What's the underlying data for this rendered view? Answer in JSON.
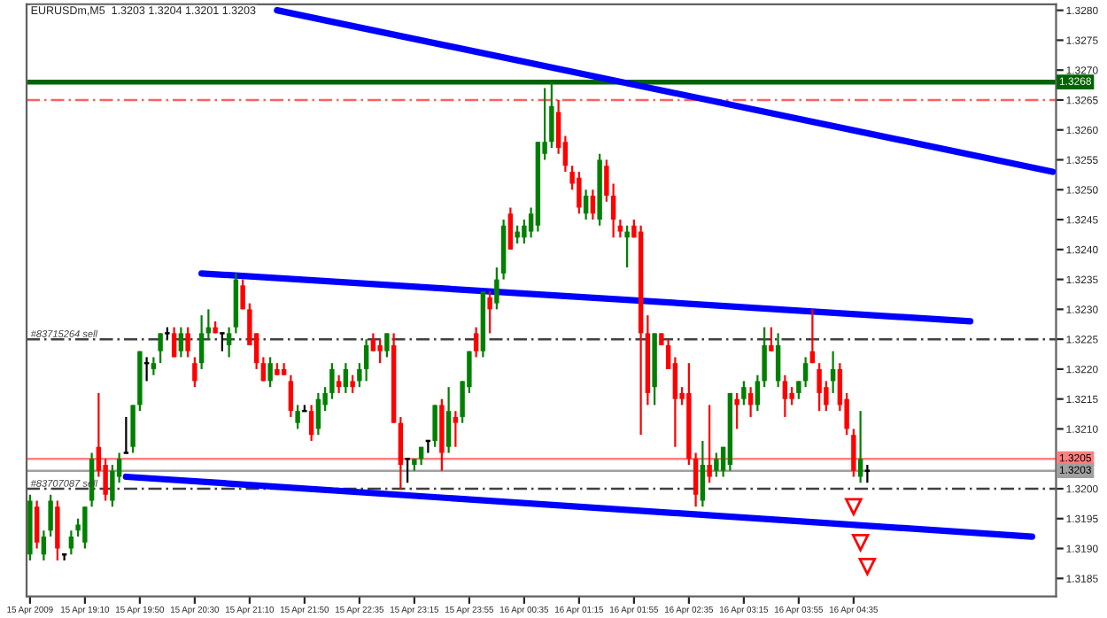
{
  "chart_data": {
    "type": "candlestick",
    "title": "EURUSDm,M5  1.3203 1.3204 1.3201 1.3203",
    "categories": [
      "15 Apr 2009",
      null,
      null,
      null,
      null,
      null,
      null,
      null,
      "15 Apr 19:10",
      null,
      null,
      null,
      null,
      null,
      null,
      null,
      "15 Apr 19:50",
      null,
      null,
      null,
      null,
      null,
      null,
      null,
      "15 Apr 20:30",
      null,
      null,
      null,
      null,
      null,
      null,
      null,
      "15 Apr 21:10",
      null,
      null,
      null,
      null,
      null,
      null,
      null,
      "15 Apr 21:50",
      null,
      null,
      null,
      null,
      null,
      null,
      null,
      "15 Apr 22:35",
      null,
      null,
      null,
      null,
      null,
      null,
      null,
      "15 Apr 23:15",
      null,
      null,
      null,
      null,
      null,
      null,
      null,
      "15 Apr 23:55",
      null,
      null,
      null,
      null,
      null,
      null,
      null,
      "16 Apr 00:35",
      null,
      null,
      null,
      null,
      null,
      null,
      null,
      "16 Apr 01:15",
      null,
      null,
      null,
      null,
      null,
      null,
      null,
      "16 Apr 01:55",
      null,
      null,
      null,
      null,
      null,
      null,
      null,
      "16 Apr 02:35",
      null,
      null,
      null,
      null,
      null,
      null,
      null,
      "16 Apr 03:15",
      null,
      null,
      null,
      null,
      null,
      null,
      null,
      "16 Apr 03:55",
      null,
      null,
      null,
      null,
      null,
      null,
      null,
      "16 Apr 04:35",
      null,
      null,
      null,
      null,
      null,
      null,
      null,
      null,
      null,
      null,
      null,
      null,
      null,
      null,
      null,
      null,
      null,
      null,
      null,
      null,
      null,
      null,
      null,
      null,
      null,
      null,
      null,
      null,
      null
    ],
    "ohlc": [
      [
        1.3189,
        1.3199,
        1.3188,
        1.3198
      ],
      [
        1.3197,
        1.3198,
        1.319,
        1.3191
      ],
      [
        1.3189,
        1.3193,
        1.3188,
        1.3192
      ],
      [
        1.3193,
        1.3199,
        1.3192,
        1.3198
      ],
      [
        1.3197,
        1.3198,
        1.3188,
        1.319
      ],
      [
        1.3189,
        1.3189,
        1.3188,
        1.3189
      ],
      [
        1.319,
        1.3193,
        1.3189,
        1.3192
      ],
      [
        1.3193,
        1.3195,
        1.3192,
        1.3194
      ],
      [
        1.3191,
        1.3197,
        1.319,
        1.3197
      ],
      [
        1.3198,
        1.3206,
        1.3197,
        1.3205
      ],
      [
        1.3207,
        1.3216,
        1.3202,
        1.3203
      ],
      [
        1.3204,
        1.3205,
        1.3198,
        1.3199
      ],
      [
        1.3198,
        1.3204,
        1.3197,
        1.3203
      ],
      [
        1.3202,
        1.3206,
        1.3201,
        1.3205
      ],
      [
        1.3206,
        1.3212,
        1.3206,
        1.3206
      ],
      [
        1.3207,
        1.3214,
        1.3206,
        1.3214
      ],
      [
        1.3214,
        1.3223,
        1.3213,
        1.3223
      ],
      [
        1.3221,
        1.3222,
        1.3218,
        1.3221
      ],
      [
        1.322,
        1.3222,
        1.3219,
        1.3221
      ],
      [
        1.3223,
        1.3226,
        1.3221,
        1.3226
      ],
      [
        1.3226,
        1.3227,
        1.3225,
        1.3226
      ],
      [
        1.3226,
        1.3227,
        1.3222,
        1.3222
      ],
      [
        1.3223,
        1.3227,
        1.3222,
        1.3226
      ],
      [
        1.3226,
        1.3227,
        1.3222,
        1.3223
      ],
      [
        1.3221,
        1.3222,
        1.3217,
        1.3218
      ],
      [
        1.3221,
        1.3229,
        1.322,
        1.3226
      ],
      [
        1.3226,
        1.323,
        1.3225,
        1.3227
      ],
      [
        1.3227,
        1.3228,
        1.3226,
        1.3226
      ],
      [
        1.3226,
        1.3226,
        1.3223,
        1.3226
      ],
      [
        1.3224,
        1.3227,
        1.3222,
        1.3226
      ],
      [
        1.3227,
        1.3236,
        1.3226,
        1.3235
      ],
      [
        1.3234,
        1.3235,
        1.323,
        1.323
      ],
      [
        1.323,
        1.3231,
        1.3224,
        1.3224
      ],
      [
        1.3226,
        1.3226,
        1.322,
        1.3221
      ],
      [
        1.3221,
        1.3222,
        1.3218,
        1.3218
      ],
      [
        1.3218,
        1.3222,
        1.3217,
        1.3221
      ],
      [
        1.322,
        1.3221,
        1.3219,
        1.3219
      ],
      [
        1.322,
        1.3221,
        1.3219,
        1.3219
      ],
      [
        1.3218,
        1.3219,
        1.3212,
        1.3213
      ],
      [
        1.3211,
        1.3214,
        1.321,
        1.3213
      ],
      [
        1.3213,
        1.3214,
        1.3213,
        1.3213
      ],
      [
        1.3213,
        1.3214,
        1.3208,
        1.3209
      ],
      [
        1.321,
        1.3216,
        1.3209,
        1.3215
      ],
      [
        1.3214,
        1.3217,
        1.3213,
        1.3216
      ],
      [
        1.3216,
        1.3221,
        1.3215,
        1.322
      ],
      [
        1.3218,
        1.3219,
        1.3216,
        1.3217
      ],
      [
        1.3217,
        1.3221,
        1.3216,
        1.322
      ],
      [
        1.3218,
        1.3219,
        1.3216,
        1.3217
      ],
      [
        1.3218,
        1.3221,
        1.3217,
        1.322
      ],
      [
        1.322,
        1.3225,
        1.3218,
        1.3224
      ],
      [
        1.3225,
        1.3226,
        1.3223,
        1.3223
      ],
      [
        1.3224,
        1.3225,
        1.3221,
        1.3223
      ],
      [
        1.3223,
        1.3226,
        1.3222,
        1.3226
      ],
      [
        1.3224,
        1.3226,
        1.3211,
        1.3211
      ],
      [
        1.3211,
        1.3212,
        1.32,
        1.3204
      ],
      [
        1.3205,
        1.3205,
        1.3201,
        1.3205
      ],
      [
        1.3204,
        1.3205,
        1.3203,
        1.3205
      ],
      [
        1.3205,
        1.3207,
        1.3204,
        1.3207
      ],
      [
        1.3208,
        1.3208,
        1.3206,
        1.3208
      ],
      [
        1.3208,
        1.3214,
        1.3207,
        1.3214
      ],
      [
        1.3214,
        1.3215,
        1.3203,
        1.3206
      ],
      [
        1.3207,
        1.3217,
        1.3206,
        1.3213
      ],
      [
        1.3212,
        1.3213,
        1.3207,
        1.3211
      ],
      [
        1.3212,
        1.3218,
        1.3211,
        1.3218
      ],
      [
        1.3217,
        1.3223,
        1.3216,
        1.3223
      ],
      [
        1.3226,
        1.3227,
        1.3222,
        1.3223
      ],
      [
        1.3223,
        1.3233,
        1.3222,
        1.3233
      ],
      [
        1.3232,
        1.3233,
        1.3226,
        1.323
      ],
      [
        1.3231,
        1.3237,
        1.323,
        1.3235
      ],
      [
        1.3236,
        1.3245,
        1.3235,
        1.3244
      ],
      [
        1.3246,
        1.3247,
        1.324,
        1.324
      ],
      [
        1.3242,
        1.3244,
        1.3241,
        1.3243
      ],
      [
        1.3242,
        1.3245,
        1.3241,
        1.3244
      ],
      [
        1.3243,
        1.3247,
        1.3242,
        1.3246
      ],
      [
        1.3244,
        1.3258,
        1.3243,
        1.3258
      ],
      [
        1.3256,
        1.3267,
        1.3255,
        1.3258
      ],
      [
        1.3258,
        1.3268,
        1.3257,
        1.3264
      ],
      [
        1.3263,
        1.3265,
        1.3256,
        1.3257
      ],
      [
        1.3258,
        1.3259,
        1.3253,
        1.3254
      ],
      [
        1.3253,
        1.3254,
        1.325,
        1.3251
      ],
      [
        1.3252,
        1.3253,
        1.3246,
        1.3247
      ],
      [
        1.3246,
        1.325,
        1.3245,
        1.3249
      ],
      [
        1.3249,
        1.325,
        1.3245,
        1.3246
      ],
      [
        1.3245,
        1.3256,
        1.3244,
        1.3255
      ],
      [
        1.3254,
        1.3255,
        1.3248,
        1.3249
      ],
      [
        1.3249,
        1.3251,
        1.3242,
        1.3245
      ],
      [
        1.3244,
        1.3245,
        1.3242,
        1.3243
      ],
      [
        1.3242,
        1.3244,
        1.3237,
        1.3243
      ],
      [
        1.3244,
        1.3245,
        1.3242,
        1.3242
      ],
      [
        1.3243,
        1.3244,
        1.3209,
        1.3226
      ],
      [
        1.3226,
        1.3229,
        1.3214,
        1.3216
      ],
      [
        1.3217,
        1.3226,
        1.3214,
        1.3226
      ],
      [
        1.3226,
        1.3226,
        1.3224,
        1.3224
      ],
      [
        1.3224,
        1.3225,
        1.322,
        1.322
      ],
      [
        1.3221,
        1.3222,
        1.3207,
        1.3215
      ],
      [
        1.3216,
        1.3217,
        1.3214,
        1.3215
      ],
      [
        1.3216,
        1.3221,
        1.3204,
        1.3205
      ],
      [
        1.3205,
        1.3206,
        1.3197,
        1.3199
      ],
      [
        1.3198,
        1.3208,
        1.3197,
        1.3204
      ],
      [
        1.3204,
        1.3214,
        1.3201,
        1.3202
      ],
      [
        1.3203,
        1.3206,
        1.3202,
        1.3205
      ],
      [
        1.3203,
        1.3207,
        1.3202,
        1.3207
      ],
      [
        1.3204,
        1.3216,
        1.3203,
        1.3216
      ],
      [
        1.3215,
        1.3216,
        1.321,
        1.3214
      ],
      [
        1.3215,
        1.3218,
        1.3214,
        1.3217
      ],
      [
        1.3216,
        1.3217,
        1.3212,
        1.3214
      ],
      [
        1.3214,
        1.3219,
        1.3213,
        1.3218
      ],
      [
        1.3218,
        1.3227,
        1.3217,
        1.3224
      ],
      [
        1.3224,
        1.3227,
        1.3223,
        1.3223
      ],
      [
        1.3218,
        1.3226,
        1.3217,
        1.3224
      ],
      [
        1.3218,
        1.3219,
        1.3212,
        1.3215
      ],
      [
        1.3216,
        1.3217,
        1.3214,
        1.3215
      ],
      [
        1.3216,
        1.3218,
        1.3215,
        1.3218
      ],
      [
        1.3218,
        1.3222,
        1.3217,
        1.3221
      ],
      [
        1.3223,
        1.323,
        1.3221,
        1.3221
      ],
      [
        1.322,
        1.3221,
        1.3213,
        1.3216
      ],
      [
        1.3217,
        1.3218,
        1.3213,
        1.3214
      ],
      [
        1.3218,
        1.3223,
        1.3216,
        1.322
      ],
      [
        1.322,
        1.3221,
        1.3213,
        1.3214
      ],
      [
        1.3215,
        1.3216,
        1.3209,
        1.321
      ],
      [
        1.3209,
        1.321,
        1.3202,
        1.3203
      ],
      [
        1.3202,
        1.3213,
        1.3201,
        1.3205
      ],
      [
        1.3203,
        1.3204,
        1.3201,
        1.3203
      ],
      null,
      null,
      null,
      null,
      null,
      null,
      null,
      null,
      null,
      null,
      null,
      null,
      null,
      null,
      null,
      null,
      null,
      null,
      null,
      null,
      null,
      null,
      null,
      null,
      null,
      null,
      null
    ],
    "colors": [
      "#008000",
      "#ff0000",
      "#008000",
      "#008000",
      "#ff0000",
      "#000000",
      "#008000",
      "#008000",
      "#008000",
      "#008000",
      "#ff0000",
      "#ff0000",
      "#008000",
      "#008000",
      "#000000",
      "#008000",
      "#008000",
      "#000000",
      "#008000",
      "#008000",
      "#000000",
      "#ff0000",
      "#008000",
      "#ff0000",
      "#ff0000",
      "#008000",
      "#008000",
      "#ff0000",
      "#000000",
      "#008000",
      "#008000",
      "#ff0000",
      "#ff0000",
      "#ff0000",
      "#ff0000",
      "#008000",
      "#ff0000",
      "#ff0000",
      "#ff0000",
      "#008000",
      "#000000",
      "#ff0000",
      "#008000",
      "#008000",
      "#008000",
      "#ff0000",
      "#008000",
      "#ff0000",
      "#008000",
      "#008000",
      "#ff0000",
      "#ff0000",
      "#008000",
      "#ff0000",
      "#ff0000",
      "#000000",
      "#008000",
      "#008000",
      "#000000",
      "#008000",
      "#ff0000",
      "#008000",
      "#ff0000",
      "#008000",
      "#008000",
      "#ff0000",
      "#008000",
      "#ff0000",
      "#008000",
      "#008000",
      "#ff0000",
      "#008000",
      "#008000",
      "#008000",
      "#008000",
      "#008000",
      "#008000",
      "#ff0000",
      "#ff0000",
      "#ff0000",
      "#ff0000",
      "#008000",
      "#ff0000",
      "#008000",
      "#ff0000",
      "#ff0000",
      "#ff0000",
      "#008000",
      "#ff0000",
      "#ff0000",
      "#ff0000",
      "#008000",
      "#ff0000",
      "#ff0000",
      "#ff0000",
      "#ff0000",
      "#ff0000",
      "#ff0000",
      "#008000",
      "#ff0000",
      "#008000",
      "#008000",
      "#008000",
      "#ff0000",
      "#008000",
      "#ff0000",
      "#008000",
      "#008000",
      "#ff0000",
      "#008000",
      "#ff0000",
      "#ff0000",
      "#008000",
      "#008000",
      "#ff0000",
      "#ff0000",
      "#ff0000",
      "#008000",
      "#ff0000",
      "#ff0000",
      "#ff0000",
      "#008000",
      "#000000",
      null,
      null,
      null,
      null,
      null,
      null,
      null,
      null,
      null,
      null,
      null,
      null,
      null,
      null,
      null,
      null,
      null,
      null,
      null,
      null,
      null,
      null,
      null,
      null,
      null,
      null,
      null
    ],
    "series": [
      {
        "type": "line",
        "color": "#0000ff",
        "values": [
          null,
          null,
          null,
          null,
          null,
          null,
          null,
          null,
          null,
          null,
          null,
          null,
          null,
          null,
          null,
          null,
          null,
          null,
          null,
          null,
          null,
          null,
          null,
          null,
          null,
          null,
          null,
          null,
          null,
          null,
          null,
          null,
          null,
          null,
          null,
          null,
          1.328,
          null,
          null,
          null,
          null,
          null,
          null,
          null,
          null,
          null,
          null,
          null,
          null,
          null,
          null,
          null,
          null,
          null,
          null,
          null,
          null,
          null,
          null,
          null,
          null,
          null,
          null,
          null,
          null,
          null,
          null,
          null,
          null,
          null,
          null,
          null,
          null,
          null,
          null,
          null,
          null,
          null,
          null,
          null,
          null,
          null,
          null,
          null,
          null,
          null,
          null,
          null,
          null,
          null,
          null,
          null,
          null,
          null,
          null,
          null,
          null,
          null,
          null,
          null,
          null,
          null,
          null,
          null,
          null,
          null,
          null,
          null,
          null,
          null,
          null,
          null,
          null,
          null,
          null,
          null,
          null,
          null,
          null,
          null,
          null,
          null,
          null,
          null,
          null,
          null,
          null,
          null,
          null,
          null,
          null,
          null,
          null,
          null,
          null,
          null,
          null,
          null,
          null,
          null,
          null,
          null,
          null,
          null,
          null,
          null,
          null,
          null,
          null,
          1.3253
        ]
      },
      {
        "type": "line",
        "color": "#0000ff",
        "values": [
          null,
          null,
          null,
          null,
          null,
          null,
          null,
          null,
          null,
          null,
          null,
          null,
          null,
          null,
          null,
          null,
          null,
          null,
          null,
          null,
          null,
          null,
          null,
          null,
          null,
          1.3236,
          null,
          null,
          null,
          null,
          null,
          null,
          null,
          null,
          null,
          null,
          null,
          null,
          null,
          null,
          null,
          null,
          null,
          null,
          null,
          null,
          null,
          null,
          null,
          null,
          null,
          null,
          null,
          null,
          null,
          null,
          null,
          null,
          null,
          null,
          null,
          null,
          null,
          null,
          null,
          null,
          null,
          null,
          null,
          null,
          null,
          null,
          null,
          null,
          null,
          null,
          null,
          null,
          null,
          null,
          null,
          null,
          null,
          null,
          null,
          null,
          null,
          null,
          null,
          null,
          null,
          null,
          null,
          null,
          null,
          null,
          null,
          null,
          null,
          null,
          null,
          null,
          null,
          null,
          null,
          null,
          null,
          null,
          null,
          null,
          null,
          null,
          null,
          null,
          null,
          null,
          null,
          null,
          null,
          null,
          null,
          null,
          null,
          null,
          null,
          null,
          null,
          null,
          null,
          null,
          null,
          null,
          null,
          null,
          null,
          null,
          null,
          1.3228,
          null,
          null,
          null,
          null,
          null,
          null,
          null,
          null,
          null,
          null,
          null,
          null
        ]
      },
      {
        "type": "line",
        "color": "#0000ff",
        "values": [
          null,
          null,
          null,
          null,
          null,
          null,
          null,
          null,
          null,
          null,
          null,
          null,
          null,
          null,
          1.3202,
          null,
          null,
          null,
          null,
          null,
          null,
          null,
          null,
          null,
          null,
          null,
          null,
          null,
          null,
          null,
          null,
          null,
          null,
          null,
          null,
          null,
          null,
          null,
          null,
          null,
          null,
          null,
          null,
          null,
          null,
          null,
          null,
          null,
          null,
          null,
          null,
          null,
          null,
          null,
          null,
          null,
          null,
          null,
          null,
          null,
          null,
          null,
          null,
          null,
          null,
          null,
          null,
          null,
          null,
          null,
          null,
          null,
          null,
          null,
          null,
          null,
          null,
          null,
          null,
          null,
          null,
          null,
          null,
          null,
          null,
          null,
          null,
          null,
          null,
          null,
          null,
          null,
          null,
          null,
          null,
          null,
          null,
          null,
          null,
          null,
          null,
          null,
          null,
          null,
          null,
          null,
          null,
          null,
          null,
          null,
          null,
          null,
          null,
          null,
          null,
          null,
          null,
          null,
          null,
          null,
          null,
          null,
          null,
          null,
          null,
          null,
          null,
          null,
          null,
          null,
          null,
          null,
          null,
          null,
          null,
          null,
          null,
          null,
          null,
          null,
          null,
          null,
          null,
          null,
          null,
          null,
          1.3192,
          null,
          null,
          null
        ]
      },
      {
        "type": "scatter",
        "color": "#ff0000",
        "marker": "triangle",
        "values": [
          null,
          null,
          null,
          null,
          null,
          null,
          null,
          null,
          null,
          null,
          null,
          null,
          null,
          null,
          null,
          null,
          null,
          null,
          null,
          null,
          null,
          null,
          null,
          null,
          null,
          null,
          null,
          null,
          null,
          null,
          null,
          null,
          null,
          null,
          null,
          null,
          null,
          null,
          null,
          null,
          null,
          null,
          null,
          null,
          null,
          null,
          null,
          null,
          null,
          null,
          null,
          null,
          null,
          null,
          null,
          null,
          null,
          null,
          null,
          null,
          null,
          null,
          null,
          null,
          null,
          null,
          null,
          null,
          null,
          null,
          null,
          null,
          null,
          null,
          null,
          null,
          null,
          null,
          null,
          null,
          null,
          null,
          null,
          null,
          null,
          null,
          null,
          null,
          null,
          null,
          null,
          null,
          null,
          null,
          null,
          null,
          null,
          null,
          null,
          null,
          null,
          null,
          null,
          null,
          null,
          null,
          null,
          null,
          null,
          null,
          null,
          null,
          null,
          null,
          null,
          null,
          null,
          null,
          null,
          null,
          1.3197,
          1.3191,
          1.3187,
          null,
          null,
          null,
          null,
          null,
          null,
          null,
          null,
          null,
          null,
          null,
          null,
          null,
          null,
          null,
          null,
          null,
          null,
          null,
          null,
          null,
          null,
          null,
          null,
          null,
          null,
          null
        ]
      }
    ],
    "ref_lines": [
      {
        "axis": "y",
        "value": 1.3268,
        "label": "1.3268",
        "color": "#006400",
        "line_style": "solid"
      },
      {
        "axis": "y",
        "value": 1.3265,
        "label": null,
        "color": "#ff6060",
        "line_style": "dashed"
      },
      {
        "axis": "y",
        "value": 1.3225,
        "label": "#83715264 sell",
        "color": "#404040",
        "line_style": "dashed"
      },
      {
        "axis": "y",
        "value": 1.3205,
        "label": "1.3205",
        "color": "#ff8080",
        "line_style": "solid"
      },
      {
        "axis": "y",
        "value": 1.3203,
        "label": "1.3203",
        "color": "#a0a0a0",
        "line_style": "solid"
      },
      {
        "axis": "y",
        "value": 1.32,
        "label": "#83707087 sell",
        "color": "#404040",
        "line_style": "dashed"
      }
    ],
    "ylim": [
      1.3182,
      1.3281
    ],
    "yticks": [
      {
        "value": 1.3185,
        "label": "1.3185"
      },
      {
        "value": 1.319,
        "label": "1.3190"
      },
      {
        "value": 1.3195,
        "label": "1.3195"
      },
      {
        "value": 1.32,
        "label": "1.3200"
      },
      {
        "value": 1.3205,
        "label": null
      },
      {
        "value": 1.321,
        "label": "1.3210"
      },
      {
        "value": 1.3215,
        "label": "1.3215"
      },
      {
        "value": 1.322,
        "label": "1.3220"
      },
      {
        "value": 1.3225,
        "label": "1.3225"
      },
      {
        "value": 1.323,
        "label": "1.3230"
      },
      {
        "value": 1.3235,
        "label": "1.3235"
      },
      {
        "value": 1.324,
        "label": "1.3240"
      },
      {
        "value": 1.3245,
        "label": "1.3245"
      },
      {
        "value": 1.325,
        "label": "1.3250"
      },
      {
        "value": 1.3255,
        "label": "1.3255"
      },
      {
        "value": 1.326,
        "label": "1.3260"
      },
      {
        "value": 1.3265,
        "label": "1.3265"
      },
      {
        "value": 1.327,
        "label": "1.3270"
      },
      {
        "value": 1.3275,
        "label": "1.3275"
      },
      {
        "value": 1.328,
        "label": "1.3280"
      }
    ],
    "grid": false,
    "legend": false
  }
}
